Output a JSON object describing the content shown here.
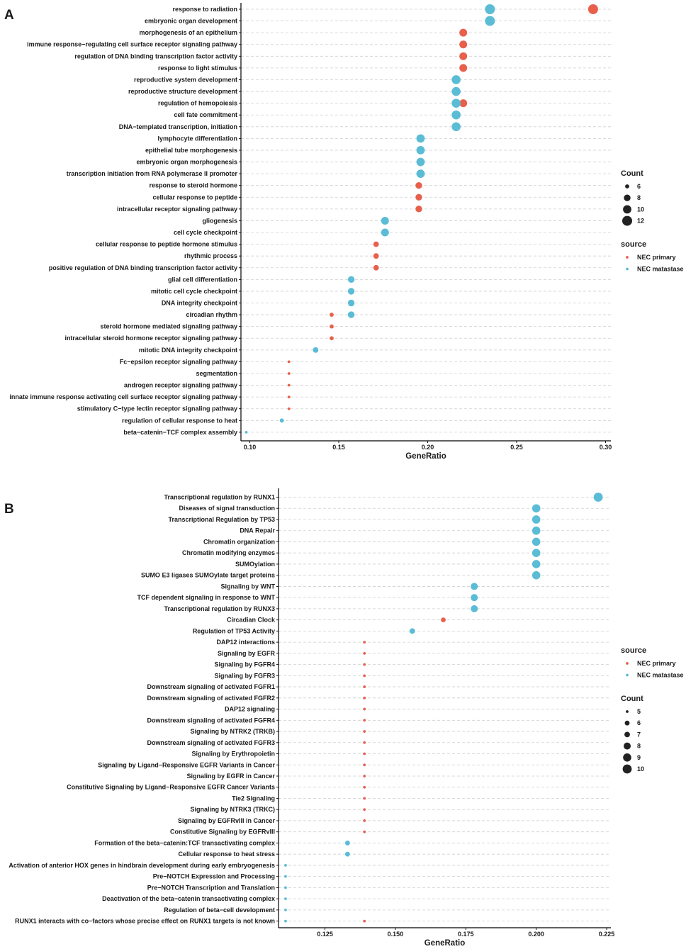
{
  "colors": {
    "NEC primary": "#E8604C",
    "NEC matastase": "#5BBCD6"
  },
  "chart_data": [
    {
      "panel": "A",
      "type": "scatter",
      "xlabel": "GeneRatio",
      "xlim": [
        0.095,
        0.303
      ],
      "xticks": [
        0.1,
        0.15,
        0.2,
        0.25,
        0.3
      ],
      "xtick_labels": [
        "0.10",
        "0.15",
        "0.20",
        "0.25",
        "0.30"
      ],
      "size_legend_title": "Count",
      "size_legend": [
        6,
        8,
        10,
        12
      ],
      "color_legend_title": "source",
      "sources": [
        "NEC primary",
        "NEC matastase"
      ],
      "terms": [
        "response to radiation",
        "embryonic organ development",
        "morphogenesis of an epithelium",
        "immune response−regulating cell surface receptor signaling pathway",
        "regulation of DNA binding transcription factor activity",
        "response to light stimulus",
        "reproductive system development",
        "reproductive structure development",
        "regulation of hemopoiesis",
        "cell fate commitment",
        "DNA−templated transcription, initiation",
        "lymphocyte differentiation",
        "epithelial tube morphogenesis",
        "embryonic organ morphogenesis",
        "transcription initiation from RNA polymerase II promoter",
        "response to steroid hormone",
        "cellular response to peptide",
        "intracellular receptor signaling pathway",
        "gliogenesis",
        "cell cycle checkpoint",
        "cellular response to peptide hormone stimulus",
        "rhythmic process",
        "positive regulation of DNA binding transcription factor activity",
        "glial cell differentiation",
        "mitotic cell cycle checkpoint",
        "DNA integrity checkpoint",
        "circadian rhythm",
        "steroid hormone mediated signaling pathway",
        "intracellular steroid hormone receptor signaling pathway",
        "mitotic DNA integrity checkpoint",
        "Fc−epsilon receptor signaling pathway",
        "segmentation",
        "androgen receptor signaling pathway",
        "innate immune response activating cell surface receptor signaling pathway",
        "stimulatory C−type lectin receptor signaling pathway",
        "regulation of cellular response to heat",
        "beta−catenin−TCF complex assembly"
      ],
      "points": [
        {
          "term": 0,
          "x": 0.293,
          "count": 12,
          "source": "NEC primary"
        },
        {
          "term": 0,
          "x": 0.235,
          "count": 12,
          "source": "NEC matastase"
        },
        {
          "term": 1,
          "x": 0.235,
          "count": 12,
          "source": "NEC matastase"
        },
        {
          "term": 2,
          "x": 0.22,
          "count": 9,
          "source": "NEC primary"
        },
        {
          "term": 3,
          "x": 0.22,
          "count": 9,
          "source": "NEC primary"
        },
        {
          "term": 4,
          "x": 0.22,
          "count": 9,
          "source": "NEC primary"
        },
        {
          "term": 5,
          "x": 0.22,
          "count": 9,
          "source": "NEC primary"
        },
        {
          "term": 6,
          "x": 0.216,
          "count": 11,
          "source": "NEC matastase"
        },
        {
          "term": 7,
          "x": 0.216,
          "count": 11,
          "source": "NEC matastase"
        },
        {
          "term": 8,
          "x": 0.22,
          "count": 9,
          "source": "NEC primary"
        },
        {
          "term": 8,
          "x": 0.216,
          "count": 11,
          "source": "NEC matastase"
        },
        {
          "term": 9,
          "x": 0.216,
          "count": 11,
          "source": "NEC matastase"
        },
        {
          "term": 10,
          "x": 0.216,
          "count": 11,
          "source": "NEC matastase"
        },
        {
          "term": 11,
          "x": 0.196,
          "count": 10,
          "source": "NEC matastase"
        },
        {
          "term": 12,
          "x": 0.196,
          "count": 10,
          "source": "NEC matastase"
        },
        {
          "term": 13,
          "x": 0.196,
          "count": 10,
          "source": "NEC matastase"
        },
        {
          "term": 14,
          "x": 0.196,
          "count": 10,
          "source": "NEC matastase"
        },
        {
          "term": 15,
          "x": 0.195,
          "count": 8,
          "source": "NEC primary"
        },
        {
          "term": 16,
          "x": 0.195,
          "count": 8,
          "source": "NEC primary"
        },
        {
          "term": 17,
          "x": 0.195,
          "count": 8,
          "source": "NEC primary"
        },
        {
          "term": 18,
          "x": 0.176,
          "count": 9,
          "source": "NEC matastase"
        },
        {
          "term": 19,
          "x": 0.176,
          "count": 9,
          "source": "NEC matastase"
        },
        {
          "term": 20,
          "x": 0.171,
          "count": 7,
          "source": "NEC primary"
        },
        {
          "term": 21,
          "x": 0.171,
          "count": 7,
          "source": "NEC primary"
        },
        {
          "term": 22,
          "x": 0.171,
          "count": 7,
          "source": "NEC primary"
        },
        {
          "term": 23,
          "x": 0.157,
          "count": 8,
          "source": "NEC matastase"
        },
        {
          "term": 24,
          "x": 0.157,
          "count": 8,
          "source": "NEC matastase"
        },
        {
          "term": 25,
          "x": 0.157,
          "count": 8,
          "source": "NEC matastase"
        },
        {
          "term": 26,
          "x": 0.146,
          "count": 6,
          "source": "NEC primary"
        },
        {
          "term": 26,
          "x": 0.157,
          "count": 8,
          "source": "NEC matastase"
        },
        {
          "term": 27,
          "x": 0.146,
          "count": 6,
          "source": "NEC primary"
        },
        {
          "term": 28,
          "x": 0.146,
          "count": 6,
          "source": "NEC primary"
        },
        {
          "term": 29,
          "x": 0.137,
          "count": 7,
          "source": "NEC matastase"
        },
        {
          "term": 30,
          "x": 0.122,
          "count": 5,
          "source": "NEC primary"
        },
        {
          "term": 31,
          "x": 0.122,
          "count": 5,
          "source": "NEC primary"
        },
        {
          "term": 32,
          "x": 0.122,
          "count": 5,
          "source": "NEC primary"
        },
        {
          "term": 33,
          "x": 0.122,
          "count": 5,
          "source": "NEC primary"
        },
        {
          "term": 34,
          "x": 0.122,
          "count": 5,
          "source": "NEC primary"
        },
        {
          "term": 35,
          "x": 0.118,
          "count": 6,
          "source": "NEC matastase"
        },
        {
          "term": 36,
          "x": 0.098,
          "count": 5,
          "source": "NEC matastase"
        }
      ]
    },
    {
      "panel": "B",
      "type": "scatter",
      "xlabel": "GeneRatio",
      "xlim": [
        0.1085,
        0.2265
      ],
      "xticks": [
        0.125,
        0.15,
        0.175,
        0.2,
        0.225
      ],
      "xtick_labels": [
        "0.125",
        "0.150",
        "0.175",
        "0.200",
        "0.225"
      ],
      "size_legend_title": "Count",
      "size_legend": [
        5,
        6,
        7,
        8,
        9,
        10
      ],
      "color_legend_title": "source",
      "sources": [
        "NEC primary",
        "NEC matastase"
      ],
      "terms": [
        "Transcriptional regulation by RUNX1",
        "Diseases of signal transduction",
        "Transcriptional Regulation by TP53",
        "DNA Repair",
        "Chromatin organization",
        "Chromatin modifying enzymes",
        "SUMOylation",
        "SUMO E3 ligases SUMOylate target proteins",
        "Signaling by WNT",
        "TCF dependent signaling in response to WNT",
        "Transcriptional regulation by RUNX3",
        "Circadian Clock",
        "Regulation of TP53 Activity",
        "DAP12 interactions",
        "Signaling by EGFR",
        "Signaling by FGFR4",
        "Signaling by FGFR3",
        "Downstream signaling of activated FGFR1",
        "Downstream signaling of activated FGFR2",
        "DAP12 signaling",
        "Downstream signaling of activated FGFR4",
        "Signaling by NTRK2 (TRKB)",
        "Downstream signaling of activated FGFR3",
        "Signaling by Erythropoietin",
        "Signaling by Ligand−Responsive EGFR Variants in Cancer",
        "Signaling by EGFR in Cancer",
        "Constitutive Signaling by Ligand−Responsive EGFR Cancer Variants",
        "Tie2 Signaling",
        "Signaling by NTRK3 (TRKC)",
        "Signaling by EGFRvIII in Cancer",
        "Constitutive Signaling by EGFRvIII",
        "Formation of the beta−catenin:TCF transactivating complex",
        "Cellular response to heat stress",
        "Activation of anterior HOX genes in hindbrain development during early embryogenesis",
        "Pre−NOTCH Expression and Processing",
        "Pre−NOTCH Transcription and Translation",
        "Deactivation of the beta−catenin transactivating complex",
        "Regulation of beta−cell development",
        "RUNX1 interacts with co−factors whose precise effect on RUNX1 targets is not known"
      ],
      "points": [
        {
          "term": 0,
          "x": 0.222,
          "count": 10,
          "source": "NEC matastase"
        },
        {
          "term": 1,
          "x": 0.2,
          "count": 9,
          "source": "NEC matastase"
        },
        {
          "term": 2,
          "x": 0.2,
          "count": 9,
          "source": "NEC matastase"
        },
        {
          "term": 3,
          "x": 0.2,
          "count": 9,
          "source": "NEC matastase"
        },
        {
          "term": 4,
          "x": 0.2,
          "count": 9,
          "source": "NEC matastase"
        },
        {
          "term": 5,
          "x": 0.2,
          "count": 9,
          "source": "NEC matastase"
        },
        {
          "term": 6,
          "x": 0.2,
          "count": 9,
          "source": "NEC matastase"
        },
        {
          "term": 7,
          "x": 0.2,
          "count": 9,
          "source": "NEC matastase"
        },
        {
          "term": 8,
          "x": 0.178,
          "count": 8,
          "source": "NEC matastase"
        },
        {
          "term": 9,
          "x": 0.178,
          "count": 8,
          "source": "NEC matastase"
        },
        {
          "term": 10,
          "x": 0.178,
          "count": 8,
          "source": "NEC matastase"
        },
        {
          "term": 11,
          "x": 0.167,
          "count": 6,
          "source": "NEC primary"
        },
        {
          "term": 12,
          "x": 0.156,
          "count": 7,
          "source": "NEC matastase"
        },
        {
          "term": 13,
          "x": 0.139,
          "count": 5,
          "source": "NEC primary"
        },
        {
          "term": 14,
          "x": 0.139,
          "count": 5,
          "source": "NEC primary"
        },
        {
          "term": 15,
          "x": 0.139,
          "count": 5,
          "source": "NEC primary"
        },
        {
          "term": 16,
          "x": 0.139,
          "count": 5,
          "source": "NEC primary"
        },
        {
          "term": 17,
          "x": 0.139,
          "count": 5,
          "source": "NEC primary"
        },
        {
          "term": 18,
          "x": 0.139,
          "count": 5,
          "source": "NEC primary"
        },
        {
          "term": 19,
          "x": 0.139,
          "count": 5,
          "source": "NEC primary"
        },
        {
          "term": 20,
          "x": 0.139,
          "count": 5,
          "source": "NEC primary"
        },
        {
          "term": 21,
          "x": 0.139,
          "count": 5,
          "source": "NEC primary"
        },
        {
          "term": 22,
          "x": 0.139,
          "count": 5,
          "source": "NEC primary"
        },
        {
          "term": 23,
          "x": 0.139,
          "count": 5,
          "source": "NEC primary"
        },
        {
          "term": 24,
          "x": 0.139,
          "count": 5,
          "source": "NEC primary"
        },
        {
          "term": 25,
          "x": 0.139,
          "count": 5,
          "source": "NEC primary"
        },
        {
          "term": 26,
          "x": 0.139,
          "count": 5,
          "source": "NEC primary"
        },
        {
          "term": 27,
          "x": 0.139,
          "count": 5,
          "source": "NEC primary"
        },
        {
          "term": 28,
          "x": 0.139,
          "count": 5,
          "source": "NEC primary"
        },
        {
          "term": 29,
          "x": 0.139,
          "count": 5,
          "source": "NEC primary"
        },
        {
          "term": 30,
          "x": 0.139,
          "count": 5,
          "source": "NEC primary"
        },
        {
          "term": 31,
          "x": 0.133,
          "count": 6,
          "source": "NEC matastase"
        },
        {
          "term": 32,
          "x": 0.133,
          "count": 6,
          "source": "NEC matastase"
        },
        {
          "term": 33,
          "x": 0.111,
          "count": 5,
          "source": "NEC matastase"
        },
        {
          "term": 34,
          "x": 0.111,
          "count": 5,
          "source": "NEC matastase"
        },
        {
          "term": 35,
          "x": 0.111,
          "count": 5,
          "source": "NEC matastase"
        },
        {
          "term": 36,
          "x": 0.111,
          "count": 5,
          "source": "NEC matastase"
        },
        {
          "term": 37,
          "x": 0.111,
          "count": 5,
          "source": "NEC matastase"
        },
        {
          "term": 38,
          "x": 0.111,
          "count": 5,
          "source": "NEC matastase"
        },
        {
          "term": 38,
          "x": 0.139,
          "count": 5,
          "source": "NEC primary"
        }
      ]
    }
  ]
}
